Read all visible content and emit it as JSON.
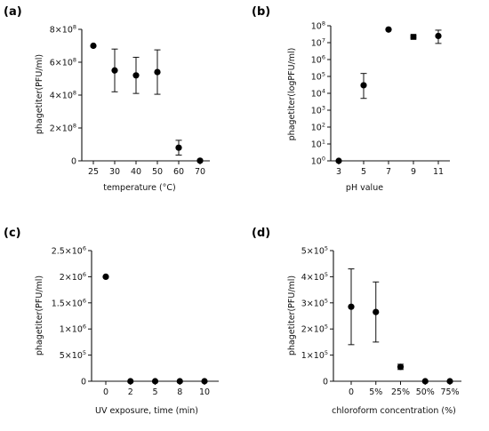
{
  "chart_data": [
    {
      "panel": "(a)",
      "type": "scatter",
      "xlabel": "temperature (°C)",
      "ylabel": "phagetiter(PFU/ml)",
      "categories": [
        "25",
        "30",
        "40",
        "50",
        "60",
        "70"
      ],
      "values": [
        700000000,
        550000000,
        520000000,
        540000000,
        80000000,
        1000000
      ],
      "errors": [
        0,
        130000000,
        110000000,
        135000000,
        45000000,
        0
      ],
      "ylim": [
        0,
        800000000
      ],
      "yticks": [
        {
          "v": 0,
          "m": "0",
          "e": ""
        },
        {
          "v": 200000000,
          "m": "2×10",
          "e": "8"
        },
        {
          "v": 400000000,
          "m": "4×10",
          "e": "8"
        },
        {
          "v": 600000000,
          "m": "6×10",
          "e": "8"
        },
        {
          "v": 800000000,
          "m": "8×10",
          "e": "8"
        }
      ],
      "scale": "linear",
      "marker": "circle"
    },
    {
      "panel": "(b)",
      "type": "scatter",
      "xlabel": "pH value",
      "ylabel": "phagetiter(logPFU/ml)",
      "categories": [
        "3",
        "5",
        "7",
        "9",
        "11"
      ],
      "values": [
        1,
        30000,
        60000000,
        22000000,
        25000000
      ],
      "err_low": [
        1,
        5000,
        60000000,
        19000000,
        9000000
      ],
      "err_high": [
        1,
        150000,
        60000000,
        25000000,
        55000000
      ],
      "ylim": [
        1,
        100000000
      ],
      "yticks": [
        {
          "v": 1,
          "m": "10",
          "e": "0"
        },
        {
          "v": 10,
          "m": "10",
          "e": "1"
        },
        {
          "v": 100,
          "m": "10",
          "e": "2"
        },
        {
          "v": 1000,
          "m": "10",
          "e": "3"
        },
        {
          "v": 10000,
          "m": "10",
          "e": "4"
        },
        {
          "v": 100000,
          "m": "10",
          "e": "5"
        },
        {
          "v": 1000000,
          "m": "10",
          "e": "6"
        },
        {
          "v": 10000000,
          "m": "10",
          "e": "7"
        },
        {
          "v": 100000000,
          "m": "10",
          "e": "8"
        }
      ],
      "scale": "log",
      "marker": "circle",
      "square_marker_index": 3
    },
    {
      "panel": "(c)",
      "type": "scatter",
      "xlabel": "UV exposure, time (min)",
      "ylabel": "phagetiter(PFU/ml)",
      "categories": [
        "0",
        "2",
        "5",
        "8",
        "10"
      ],
      "values": [
        2000000,
        0,
        0,
        0,
        0
      ],
      "errors": [
        0,
        0,
        0,
        0,
        0
      ],
      "ylim": [
        0,
        2500000
      ],
      "yticks": [
        {
          "v": 0,
          "m": "0",
          "e": ""
        },
        {
          "v": 500000,
          "m": "5×10",
          "e": "5"
        },
        {
          "v": 1000000,
          "m": "1×10",
          "e": "6"
        },
        {
          "v": 1500000,
          "m": "1.5×10",
          "e": "6"
        },
        {
          "v": 2000000,
          "m": "2×10",
          "e": "6"
        },
        {
          "v": 2500000,
          "m": "2.5×10",
          "e": "6"
        }
      ],
      "scale": "linear",
      "marker": "circle"
    },
    {
      "panel": "(d)",
      "type": "scatter",
      "xlabel": "chloroform concentration (%)",
      "ylabel": "phagetiter(PFU/ml)",
      "categories": [
        "0",
        "5%",
        "25%",
        "50%",
        "75%"
      ],
      "values": [
        285000,
        265000,
        55000,
        0,
        0
      ],
      "errors": [
        145000,
        115000,
        10000,
        0,
        0
      ],
      "ylim": [
        0,
        500000
      ],
      "yticks": [
        {
          "v": 0,
          "m": "0",
          "e": ""
        },
        {
          "v": 100000,
          "m": "1×10",
          "e": "5"
        },
        {
          "v": 200000,
          "m": "2×10",
          "e": "5"
        },
        {
          "v": 300000,
          "m": "3×10",
          "e": "5"
        },
        {
          "v": 400000,
          "m": "4×10",
          "e": "5"
        },
        {
          "v": 500000,
          "m": "5×10",
          "e": "5"
        }
      ],
      "scale": "linear",
      "marker": "circle"
    }
  ]
}
